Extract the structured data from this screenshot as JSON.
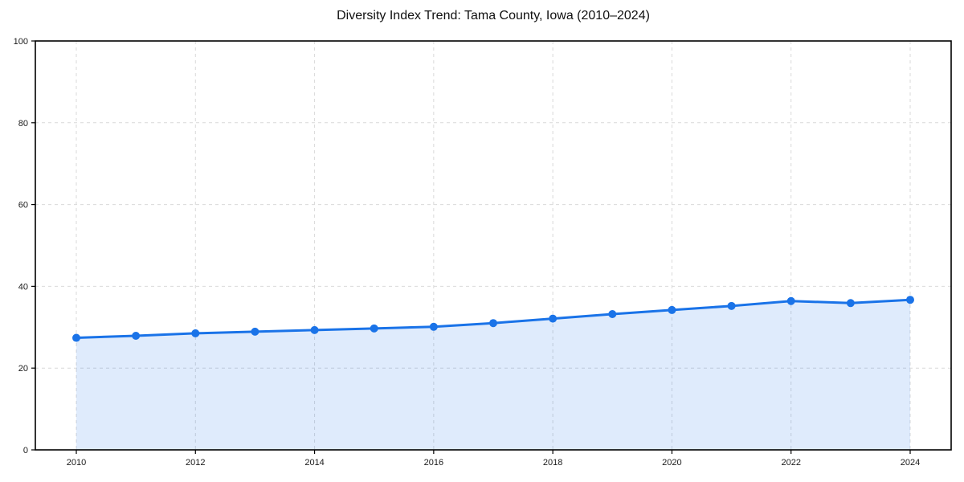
{
  "chart_data": {
    "type": "line",
    "title": "Diversity Index Trend: Tama County, Iowa (2010–2024)",
    "x": [
      2010,
      2011,
      2012,
      2013,
      2014,
      2015,
      2016,
      2017,
      2018,
      2019,
      2020,
      2021,
      2022,
      2023,
      2024
    ],
    "series": [
      {
        "name": "Diversity Index",
        "values": [
          27.4,
          27.9,
          28.5,
          28.9,
          29.3,
          29.7,
          30.1,
          31.0,
          32.1,
          33.2,
          34.2,
          35.2,
          36.4,
          35.9,
          36.7
        ]
      }
    ],
    "xticks": [
      2010,
      2012,
      2014,
      2016,
      2018,
      2020,
      2022,
      2024
    ],
    "yticks": [
      0,
      20,
      40,
      60,
      80,
      100
    ],
    "ylim": [
      0,
      100
    ],
    "xlabel": "",
    "ylabel": "",
    "legend": "none",
    "grid": "dashed",
    "style": {
      "line_color": "#1a73e8",
      "marker_color": "#1a73e8",
      "fill_color": "#1a73e8",
      "fill_opacity": 0.14,
      "grid_color": "#d9d9d9",
      "spine_color": "#000000",
      "tick_label_color": "#1a1a1a",
      "background": "#ffffff"
    }
  }
}
